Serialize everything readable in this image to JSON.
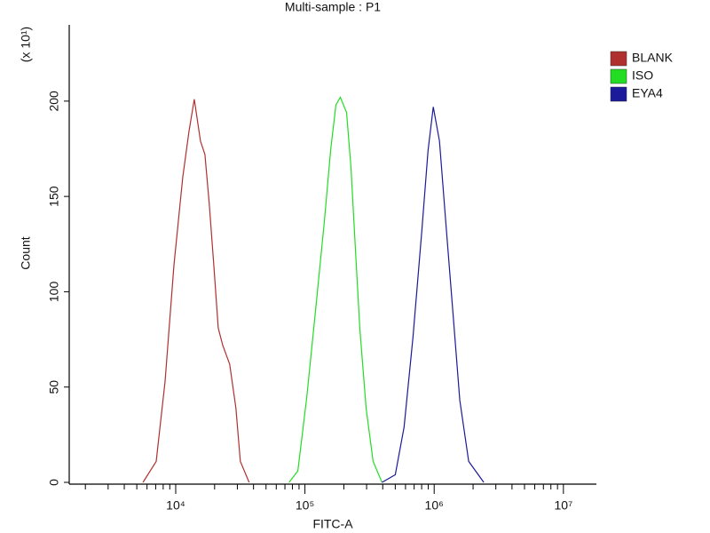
{
  "chart_data": {
    "type": "line",
    "title": "Multi-sample : P1",
    "x_label": "FITC-A",
    "y_label": "Count",
    "y_scale_label": "(x 10¹)",
    "x_scale": "log",
    "xlim": [
      1500,
      18000000
    ],
    "xticks": [
      {
        "value": 10000,
        "label": "10⁴"
      },
      {
        "value": 100000,
        "label": "10⁵"
      },
      {
        "value": 1000000,
        "label": "10⁶"
      },
      {
        "value": 10000000,
        "label": "10⁷"
      }
    ],
    "xminorticks": [
      2000,
      3000,
      4000,
      5000,
      6000,
      7000,
      8000,
      9000,
      20000,
      30000,
      40000,
      50000,
      60000,
      70000,
      80000,
      90000,
      200000,
      300000,
      400000,
      500000,
      600000,
      700000,
      800000,
      900000,
      2000000,
      3000000,
      4000000,
      5000000,
      6000000,
      7000000,
      8000000,
      9000000
    ],
    "ylim": [
      0,
      240
    ],
    "yticks": [
      0,
      50,
      100,
      150,
      200
    ],
    "legend": "right",
    "series": [
      {
        "name": "BLANK",
        "color": "#b03030",
        "x": [
          5580,
          7070,
          8280,
          9690,
          11340,
          12670,
          13930,
          15560,
          16830,
          18200,
          19720,
          21330,
          23080,
          26180,
          29240,
          31620,
          37000
        ],
        "values": [
          0,
          11,
          53,
          114,
          160,
          184,
          201,
          179,
          172,
          146,
          114,
          81,
          72,
          62,
          39,
          11,
          0
        ]
      },
      {
        "name": "ISO",
        "color": "#22dd22",
        "x": [
          75300,
          88100,
          103000,
          120800,
          141500,
          158000,
          173800,
          188000,
          209900,
          227100,
          245700,
          265800,
          297100,
          336700,
          394400
        ],
        "values": [
          0,
          6,
          44,
          90,
          137,
          174,
          198,
          202,
          194,
          165,
          123,
          81,
          39,
          11,
          0
        ]
      },
      {
        "name": "EYA4",
        "color": "#1a1a9a",
        "x": [
          394400,
          500000,
          585000,
          685000,
          802000,
          896000,
          984000,
          1099000,
          1228000,
          1393000,
          1580000,
          1850000,
          2421000
        ],
        "values": [
          0,
          4,
          29,
          76,
          132,
          174,
          197,
          179,
          137,
          90,
          43,
          11,
          0
        ]
      }
    ]
  }
}
